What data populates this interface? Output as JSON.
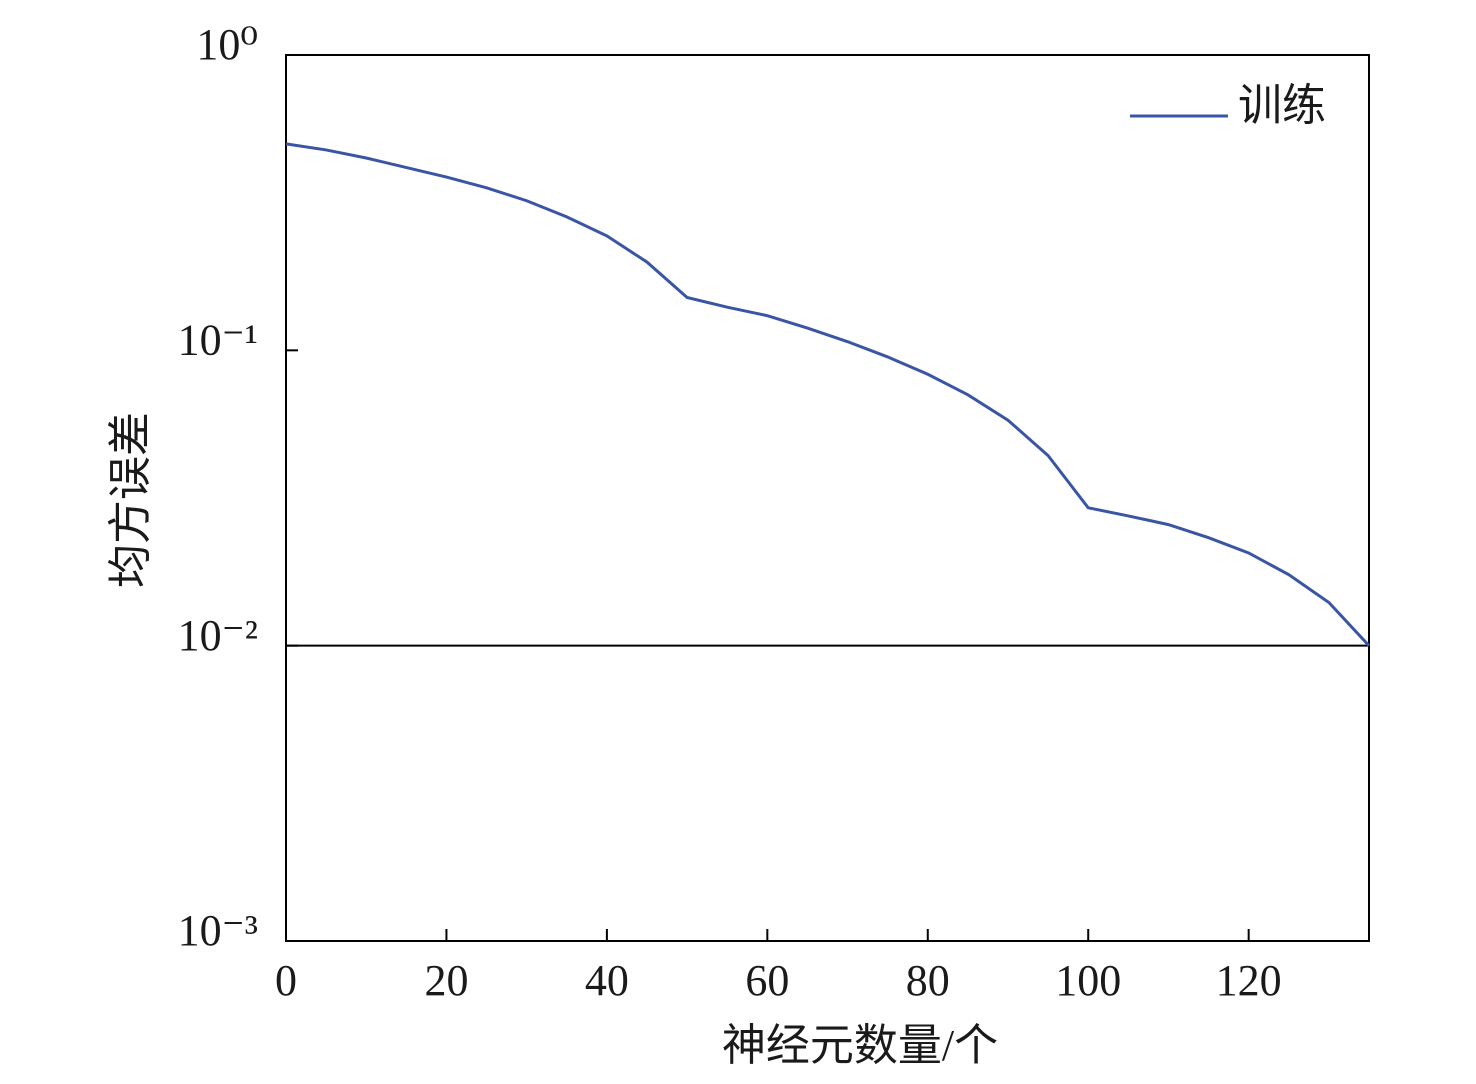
{
  "chart_data": {
    "type": "line",
    "x_label": "神经元数量/个",
    "y_label": "均方误差",
    "x": [
      0,
      5,
      10,
      20,
      25,
      30,
      35,
      40,
      45,
      50,
      55,
      60,
      65,
      70,
      75,
      80,
      85,
      90,
      95,
      100,
      105,
      110,
      115,
      120,
      125,
      130,
      135
    ],
    "series": [
      {
        "name": "训练",
        "color": "#3a55a4",
        "values": [
          0.5,
          0.477,
          0.448,
          0.386,
          0.355,
          0.321,
          0.283,
          0.244,
          0.199,
          0.151,
          0.14,
          0.131,
          0.119,
          0.107,
          0.095,
          0.083,
          0.0707,
          0.058,
          0.044,
          0.0293,
          0.0275,
          0.0257,
          0.0232,
          0.0206,
          0.0174,
          0.014,
          0.01
        ]
      }
    ],
    "hlines": [
      0.01
    ],
    "hline_color": "#000000",
    "xlim": [
      0,
      135
    ],
    "xticks": [
      0,
      20,
      40,
      60,
      80,
      100,
      120
    ],
    "ylim": [
      0.001,
      1
    ],
    "y_scale": "log",
    "yticks": [
      {
        "value": 0.001,
        "label": "10⁻³"
      },
      {
        "value": 0.01,
        "label": "10⁻²"
      },
      {
        "value": 0.1,
        "label": "10⁻¹"
      },
      {
        "value": 1,
        "label": "10⁰"
      }
    ],
    "legend": "upper right",
    "grid": false
  }
}
